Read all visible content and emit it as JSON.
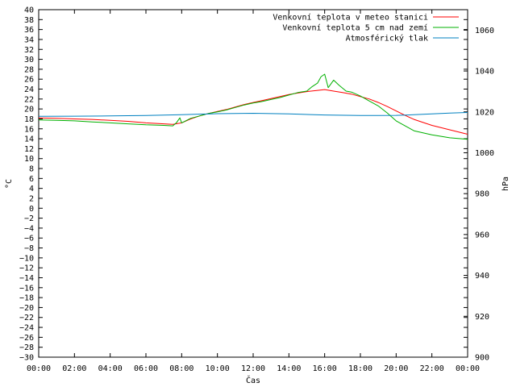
{
  "chart_data": {
    "type": "line",
    "xlabel": "Čas",
    "ylabel": "°C",
    "y2label": "hPa",
    "x_ticks": [
      "00:00",
      "02:00",
      "04:00",
      "06:00",
      "08:00",
      "10:00",
      "12:00",
      "14:00",
      "16:00",
      "18:00",
      "20:00",
      "22:00",
      "00:00"
    ],
    "x_range_hours": [
      0,
      24
    ],
    "ylim": [
      -30,
      40
    ],
    "y_ticks": [
      40,
      38,
      36,
      34,
      32,
      30,
      28,
      26,
      24,
      22,
      20,
      18,
      16,
      14,
      12,
      10,
      8,
      6,
      4,
      2,
      0,
      -2,
      -4,
      -6,
      -8,
      -10,
      -12,
      -14,
      -16,
      -18,
      -20,
      -22,
      -24,
      -26,
      -28,
      -30
    ],
    "y_tick_labels": [
      "40",
      "38",
      "36",
      "34",
      "32",
      "30",
      "28",
      "26",
      "24",
      "22",
      "20",
      "18",
      "16",
      "14",
      "12",
      "10",
      "8",
      "6",
      "4",
      "2",
      "0",
      "−2",
      "−4",
      "−6",
      "−8",
      "−10",
      "−12",
      "−14",
      "−16",
      "−18",
      "−20",
      "−22",
      "−24",
      "−26",
      "−28",
      "−30"
    ],
    "y2lim": [
      900,
      1070
    ],
    "y2_ticks": [
      1060,
      1040,
      1020,
      1000,
      980,
      960,
      940,
      920,
      900
    ],
    "grid": false,
    "legend_position": "top-right",
    "series": [
      {
        "name": "Venkovní teplota v meteo stanici",
        "color": "#ff0000",
        "axis": "left",
        "x": [
          0,
          1,
          2,
          3,
          4,
          5,
          6,
          7,
          7.5,
          8,
          8.5,
          9,
          9.5,
          10,
          10.5,
          11,
          11.5,
          12,
          12.5,
          13,
          13.5,
          14,
          14.5,
          15,
          15.5,
          16,
          16.5,
          17,
          17.5,
          18,
          18.5,
          19,
          19.5,
          20,
          20.5,
          21,
          22,
          23,
          24
        ],
        "y": [
          18.2,
          18.1,
          18.0,
          17.9,
          17.7,
          17.5,
          17.2,
          17.0,
          16.9,
          17.2,
          18.0,
          18.6,
          19.1,
          19.5,
          19.9,
          20.4,
          20.9,
          21.3,
          21.7,
          22.1,
          22.5,
          22.9,
          23.2,
          23.5,
          23.7,
          23.9,
          23.6,
          23.3,
          23.0,
          22.5,
          22.0,
          21.3,
          20.5,
          19.6,
          18.7,
          17.9,
          16.7,
          15.8,
          14.9
        ]
      },
      {
        "name": "Venkovní teplota 5 cm nad zemí",
        "color": "#00b000",
        "axis": "left",
        "x": [
          0,
          1,
          2,
          3,
          4,
          5,
          6,
          7,
          7.5,
          7.7,
          7.9,
          8,
          8.5,
          9,
          9.5,
          10,
          10.5,
          11,
          11.5,
          12,
          12.5,
          13,
          13.5,
          14,
          14.5,
          15,
          15.3,
          15.6,
          15.8,
          16,
          16.2,
          16.5,
          16.8,
          17.2,
          17.5,
          18,
          18.5,
          19,
          19.5,
          20,
          20.5,
          21,
          22,
          23,
          24
        ],
        "y": [
          17.8,
          17.7,
          17.6,
          17.4,
          17.2,
          17.0,
          16.8,
          16.7,
          16.6,
          17.2,
          18.2,
          17.2,
          18.1,
          18.6,
          19.1,
          19.4,
          19.8,
          20.3,
          20.8,
          21.2,
          21.5,
          21.9,
          22.3,
          22.8,
          23.3,
          23.6,
          24.5,
          25.2,
          26.5,
          27.0,
          24.3,
          25.8,
          24.8,
          23.6,
          23.4,
          22.6,
          21.6,
          20.6,
          19.2,
          17.6,
          16.6,
          15.6,
          14.8,
          14.2,
          13.9
        ]
      },
      {
        "name": "Atmosférický tlak",
        "color": "#0080c0",
        "axis": "right",
        "x": [
          0,
          2,
          4,
          6,
          8,
          10,
          12,
          14,
          16,
          18,
          19,
          20,
          21,
          22,
          23,
          24
        ],
        "y": [
          1017.8,
          1017.9,
          1018.0,
          1018.2,
          1018.6,
          1019.1,
          1019.3,
          1019.0,
          1018.5,
          1018.2,
          1018.2,
          1018.3,
          1018.6,
          1019.0,
          1019.4,
          1019.7
        ]
      }
    ]
  }
}
